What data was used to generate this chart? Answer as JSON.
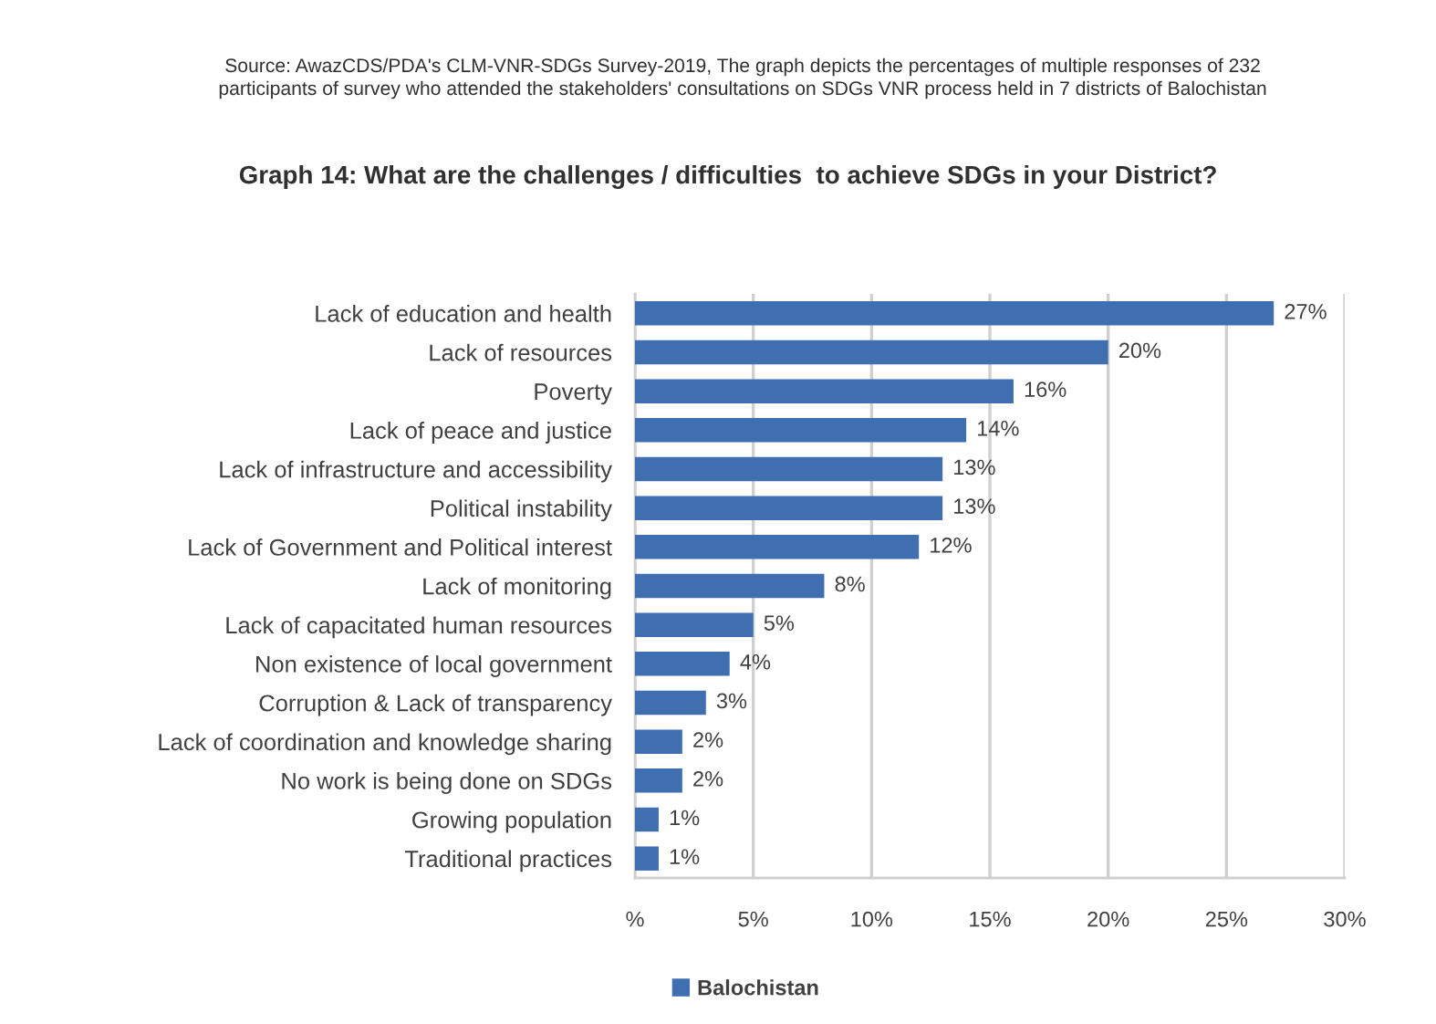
{
  "chart_data": {
    "type": "bar",
    "orientation": "horizontal",
    "title": "Graph 14: What are the challenges / difficulties  to achieve SDGs in your District?",
    "annotations": [
      "Source: AwazCDS/PDA's CLM-VNR-SDGs Survey-2019, The graph depicts the percentages of multiple responses of 232\nparticipants of survey who attended the stakeholders' consultations on SDGs VNR process held in 7 districts of Balochistan"
    ],
    "categories": [
      "Lack of education and health",
      "Lack of resources",
      "Poverty",
      "Lack of peace and justice",
      "Lack of infrastructure and accessibility",
      "Political instability",
      "Lack of Government and Political interest",
      "Lack of monitoring",
      "Lack of capacitated human resources",
      "Non existence of local government",
      "Corruption & Lack of transparency",
      "Lack of coordination and knowledge sharing",
      "No work is being done on SDGs",
      "Growing population",
      "Traditional practices"
    ],
    "series": [
      {
        "name": "Balochistan",
        "color": "#3f6fb1",
        "values": [
          27,
          20,
          16,
          14,
          13,
          13,
          12,
          8,
          5,
          4,
          3,
          2,
          2,
          1,
          1
        ],
        "value_labels": [
          "27%",
          "20%",
          "16%",
          "14%",
          "13%",
          "13%",
          "12%",
          "8%",
          "5%",
          "4%",
          "3%",
          "2%",
          "2%",
          "1%",
          "1%"
        ]
      }
    ],
    "xlim": [
      0,
      30
    ],
    "xticks": [
      {
        "value": 0,
        "label": "%"
      },
      {
        "value": 5,
        "label": "5%"
      },
      {
        "value": 10,
        "label": "10%"
      },
      {
        "value": 15,
        "label": "15%"
      },
      {
        "value": 20,
        "label": "20%"
      },
      {
        "value": 25,
        "label": "25%"
      },
      {
        "value": 30,
        "label": "30%"
      }
    ],
    "grid": "x",
    "legend": "bottom"
  }
}
